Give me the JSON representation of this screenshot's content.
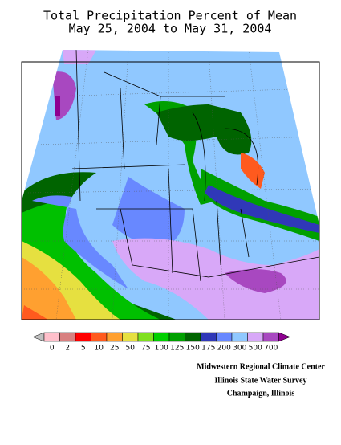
{
  "header": {
    "title": "Total Precipitation Percent of Mean",
    "subtitle": "May 25, 2004 to May 31, 2004"
  },
  "legend": {
    "below_color": "#c0c0c0",
    "above_color": "#8e0090",
    "ticks": [
      0,
      2,
      5,
      10,
      25,
      50,
      75,
      100,
      125,
      150,
      175,
      200,
      300,
      500,
      700
    ],
    "colors": [
      "#ffc0cb",
      "#d88080",
      "#ff0000",
      "#ff5a1e",
      "#ffa030",
      "#e6e040",
      "#80e020",
      "#00d000",
      "#00a000",
      "#006400",
      "#3038b8",
      "#6888ff",
      "#90c8ff",
      "#d8a8f8",
      "#a848c0"
    ]
  },
  "credits": [
    "Midwestern Regional Climate Center",
    "Illinois State Water Survey",
    "Champaign, Illinois"
  ]
}
